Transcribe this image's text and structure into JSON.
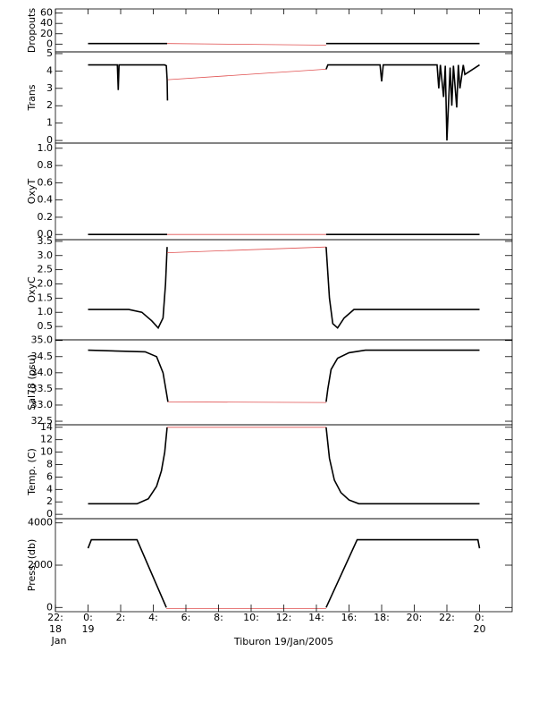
{
  "chart_data": [
    {
      "type": "line",
      "ylabel": "Dropouts",
      "ylim": [
        -15,
        68
      ],
      "yticks": [
        0,
        20,
        40,
        60
      ],
      "series": [
        {
          "color": "#000000",
          "x": [
            0,
            4.85
          ],
          "values": [
            1,
            1
          ]
        },
        {
          "color": "#e05050",
          "x": [
            4.85,
            14.6
          ],
          "values": [
            1,
            -2
          ]
        },
        {
          "color": "#000000",
          "x": [
            14.6,
            24
          ],
          "values": [
            1,
            1
          ]
        }
      ]
    },
    {
      "type": "line",
      "ylabel": "Trans",
      "ylim": [
        -0.15,
        5.1
      ],
      "yticks": [
        0,
        1,
        2,
        3,
        4,
        5
      ],
      "series": [
        {
          "color": "#000000",
          "x": [
            0,
            1.8,
            1.85,
            1.9,
            4.7,
            4.8,
            4.85,
            4.87
          ],
          "values": [
            4.35,
            4.35,
            2.9,
            4.35,
            4.35,
            4.3,
            3.5,
            2.3
          ]
        },
        {
          "color": "#e05050",
          "x": [
            4.9,
            14.6
          ],
          "values": [
            3.5,
            4.1
          ]
        },
        {
          "color": "#000000",
          "x": [
            14.6,
            14.7,
            17.9,
            18,
            18.1,
            21.4,
            21.5,
            21.6,
            21.8,
            21.9,
            22,
            22.2,
            22.3,
            22.4,
            22.6,
            22.7,
            22.8,
            23,
            23.1,
            24
          ],
          "values": [
            4.1,
            4.35,
            4.35,
            3.4,
            4.35,
            4.35,
            3.0,
            4.35,
            2.5,
            4.3,
            0.0,
            4.2,
            2.0,
            4.3,
            1.9,
            4.35,
            3.0,
            4.35,
            3.8,
            4.35
          ]
        }
      ]
    },
    {
      "type": "line",
      "ylabel": "OxyT",
      "ylim": [
        -0.06,
        1.06
      ],
      "yticks": [
        {
          "value": 0,
          "label": "0.0"
        },
        0.2,
        0.4,
        0.6,
        0.8,
        {
          "value": 1,
          "label": "1.0"
        }
      ],
      "series": [
        {
          "color": "#000000",
          "x": [
            0,
            4.85
          ],
          "values": [
            0,
            0
          ]
        },
        {
          "color": "#e05050",
          "x": [
            4.85,
            14.6
          ],
          "values": [
            0,
            0
          ]
        },
        {
          "color": "#000000",
          "x": [
            14.6,
            24
          ],
          "values": [
            0,
            0
          ]
        }
      ]
    },
    {
      "type": "line",
      "ylabel": "OxyC",
      "ylim": [
        0.03,
        3.56
      ],
      "yticks": [
        0.5,
        {
          "value": 1,
          "label": "1.0"
        },
        1.5,
        {
          "value": 2,
          "label": "2.0"
        },
        2.5,
        {
          "value": 3,
          "label": "3.0"
        },
        3.5
      ],
      "series": [
        {
          "color": "#000000",
          "x": [
            0,
            2.5,
            3.3,
            3.9,
            4.3,
            4.6,
            4.75,
            4.85
          ],
          "values": [
            1.1,
            1.1,
            1.0,
            0.7,
            0.45,
            0.8,
            2.0,
            3.3
          ]
        },
        {
          "color": "#e05050",
          "x": [
            4.85,
            14.6
          ],
          "values": [
            3.1,
            3.3
          ]
        },
        {
          "color": "#000000",
          "x": [
            14.6,
            14.8,
            15.0,
            15.3,
            15.7,
            16.3,
            24
          ],
          "values": [
            3.3,
            1.5,
            0.6,
            0.45,
            0.8,
            1.1,
            1.1
          ]
        }
      ]
    },
    {
      "type": "line",
      "ylabel": "Sal78 (psu)",
      "ylim": [
        32.39,
        35.02
      ],
      "yticks": [
        32.5,
        {
          "value": 33,
          "label": "33.0"
        },
        33.5,
        {
          "value": 34,
          "label": "34.0"
        },
        34.5,
        {
          "value": 35,
          "label": "35.0"
        }
      ],
      "series": [
        {
          "color": "#000000",
          "x": [
            0,
            3.5,
            4.2,
            4.6,
            4.8,
            4.9
          ],
          "values": [
            34.7,
            34.65,
            34.5,
            34.0,
            33.4,
            33.1
          ]
        },
        {
          "color": "#e05050",
          "x": [
            4.9,
            14.6
          ],
          "values": [
            33.1,
            33.08
          ]
        },
        {
          "color": "#000000",
          "x": [
            14.6,
            14.7,
            14.9,
            15.3,
            16,
            17,
            24
          ],
          "values": [
            33.1,
            33.5,
            34.1,
            34.45,
            34.62,
            34.7,
            34.7
          ]
        }
      ]
    },
    {
      "type": "line",
      "ylabel": "Temp. (C)",
      "ylim": [
        -0.7,
        14.4
      ],
      "yticks": [
        0,
        2,
        4,
        6,
        8,
        10,
        12,
        14
      ],
      "series": [
        {
          "color": "#000000",
          "x": [
            0,
            3,
            3.7,
            4.2,
            4.5,
            4.7,
            4.85
          ],
          "values": [
            1.7,
            1.7,
            2.5,
            4.5,
            7,
            10,
            14
          ]
        },
        {
          "color": "#e05050",
          "x": [
            4.85,
            14.6
          ],
          "values": [
            14,
            14
          ]
        },
        {
          "color": "#000000",
          "x": [
            14.6,
            14.8,
            15.1,
            15.5,
            16,
            16.6,
            24
          ],
          "values": [
            14,
            9,
            5.5,
            3.5,
            2.3,
            1.7,
            1.7
          ]
        }
      ]
    },
    {
      "type": "line",
      "ylabel": "Press. (db)",
      "ylim": [
        -200,
        4200
      ],
      "yticks": [
        0,
        2000,
        4000
      ],
      "xlabel": "Tiburon 19/Jan/2005",
      "xlim": [
        -2,
        26
      ],
      "xticks": [
        {
          "value": -2,
          "lines": [
            "22:",
            "18",
            "Jan"
          ]
        },
        {
          "value": 0,
          "lines": [
            "0:",
            "19"
          ]
        },
        {
          "value": 2,
          "lines": [
            "2:"
          ]
        },
        {
          "value": 4,
          "lines": [
            "4:"
          ]
        },
        {
          "value": 6,
          "lines": [
            "6:"
          ]
        },
        {
          "value": 8,
          "lines": [
            "8:"
          ]
        },
        {
          "value": 10,
          "lines": [
            "10:"
          ]
        },
        {
          "value": 12,
          "lines": [
            "12:"
          ]
        },
        {
          "value": 14,
          "lines": [
            "14:"
          ]
        },
        {
          "value": 16,
          "lines": [
            "16:"
          ]
        },
        {
          "value": 18,
          "lines": [
            "18:"
          ]
        },
        {
          "value": 20,
          "lines": [
            "20:"
          ]
        },
        {
          "value": 22,
          "lines": [
            "22:"
          ]
        },
        {
          "value": 24,
          "lines": [
            "0:",
            "20"
          ]
        }
      ],
      "series": [
        {
          "color": "#000000",
          "x": [
            0,
            0.2,
            3,
            4.8
          ],
          "values": [
            2800,
            3200,
            3200,
            0
          ]
        },
        {
          "color": "#e05050",
          "x": [
            4.8,
            14.6
          ],
          "values": [
            -50,
            -50
          ]
        },
        {
          "color": "#000000",
          "x": [
            14.6,
            16.5,
            23.9,
            24
          ],
          "values": [
            0,
            3200,
            3200,
            2800
          ]
        }
      ]
    }
  ]
}
